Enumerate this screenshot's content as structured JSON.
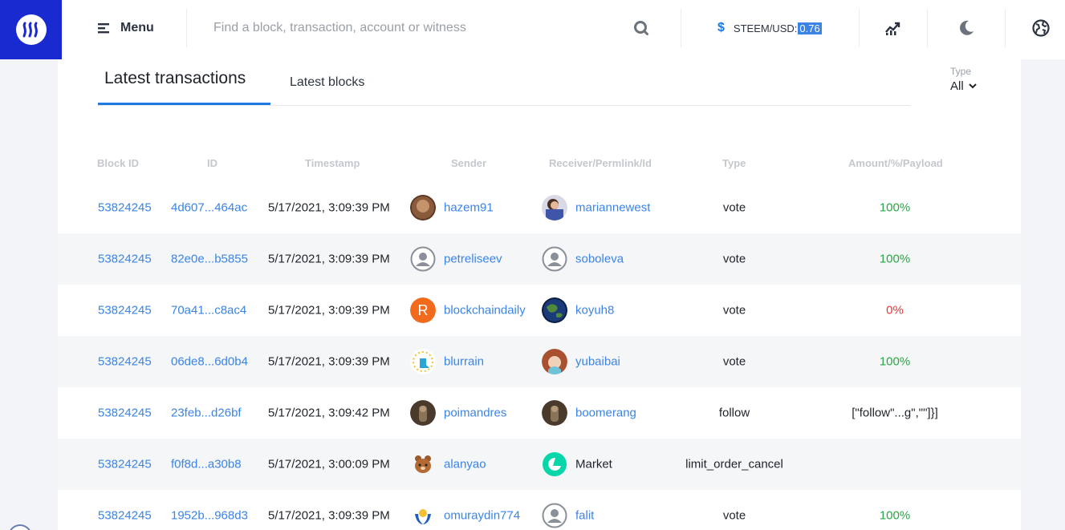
{
  "header": {
    "menu_label": "Menu",
    "search_placeholder": "Find a block, transaction, account or witness",
    "price_label": "STEEM/USD:",
    "price_value": "0.76"
  },
  "tabs": [
    {
      "label": "Latest transactions",
      "active": true
    },
    {
      "label": "Latest blocks",
      "active": false
    }
  ],
  "type_filter": {
    "caption": "Type",
    "value": "All"
  },
  "columns": [
    "Block ID",
    "ID",
    "Timestamp",
    "Sender",
    "Receiver/Permlink/Id",
    "Type",
    "Amount/%/Payload"
  ],
  "rows": [
    {
      "block_id": "53824245",
      "id": "4d607...464ac",
      "timestamp": "5/17/2021, 3:09:39 PM",
      "sender": "hazem91",
      "receiver": "mariannewest",
      "type": "vote",
      "amount": "100%"
    },
    {
      "block_id": "53824245",
      "id": "82e0e...b5855",
      "timestamp": "5/17/2021, 3:09:39 PM",
      "sender": "petreliseev",
      "receiver": "soboleva",
      "type": "vote",
      "amount": "100%"
    },
    {
      "block_id": "53824245",
      "id": "70a41...c8ac4",
      "timestamp": "5/17/2021, 3:09:39 PM",
      "sender": "blockchaindaily",
      "receiver": "koyuh8",
      "type": "vote",
      "amount": "0%"
    },
    {
      "block_id": "53824245",
      "id": "06de8...6d0b4",
      "timestamp": "5/17/2021, 3:09:39 PM",
      "sender": "blurrain",
      "receiver": "yubaibai",
      "type": "vote",
      "amount": "100%"
    },
    {
      "block_id": "53824245",
      "id": "23feb...d26bf",
      "timestamp": "5/17/2021, 3:09:42 PM",
      "sender": "poimandres",
      "receiver": "boomerang",
      "type": "follow",
      "amount": "[\"follow\"...g\",\"\"]}]"
    },
    {
      "block_id": "53824245",
      "id": "f0f8d...a30b8",
      "timestamp": "5/17/2021, 3:00:09 PM",
      "sender": "alanyao",
      "receiver": "Market",
      "type": "limit_order_cancel",
      "amount": ""
    },
    {
      "block_id": "53824245",
      "id": "1952b...968d3",
      "timestamp": "5/17/2021, 3:09:39 PM",
      "sender": "omuraydin774",
      "receiver": "falit",
      "type": "vote",
      "amount": "100%"
    }
  ],
  "colors": {
    "brand": "#1a2ad1",
    "link": "#3b84e6",
    "positive": "#28a745",
    "negative": "#e5383b"
  }
}
